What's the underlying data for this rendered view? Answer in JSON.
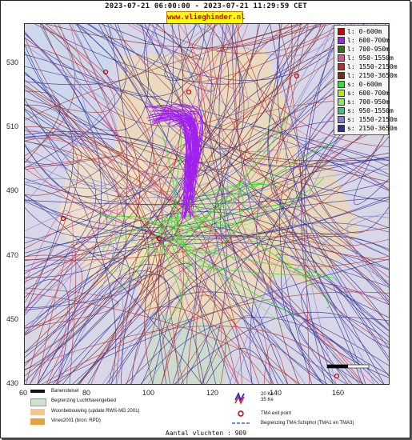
{
  "header": {
    "title": "2023-07-21 06:00:00 - 2023-07-21 11:29:59 CET",
    "brand": "www.vlieghinder.nl"
  },
  "axes": {
    "y_ticks": [
      "530",
      "510",
      "490",
      "470",
      "450",
      "430"
    ],
    "x_ticks": [
      "60",
      "80",
      "100",
      "120",
      "140",
      "160"
    ],
    "x_range": [
      60,
      175
    ],
    "y_range": [
      430,
      545
    ]
  },
  "legend": {
    "items": [
      {
        "label": "l: 0-600m",
        "color": "#d00000"
      },
      {
        "label": "l: 600-700m",
        "color": "#a020f0"
      },
      {
        "label": "l: 700-950m",
        "color": "#3c6e10"
      },
      {
        "label": "l: 950-1550m",
        "color": "#e05090"
      },
      {
        "label": "l: 1550-2150m",
        "color": "#b03030"
      },
      {
        "label": "l: 2150-3650m",
        "color": "#7a2a1a"
      },
      {
        "label": "s: 0-600m",
        "color": "#30e030"
      },
      {
        "label": "s: 600-700m",
        "color": "#b0f000"
      },
      {
        "label": "s: 700-950m",
        "color": "#90e860"
      },
      {
        "label": "s: 950-1550m",
        "color": "#40c080"
      },
      {
        "label": "s: 1550-2150m",
        "color": "#8080d0"
      },
      {
        "label": "s: 2150-3650m",
        "color": "#303090"
      }
    ]
  },
  "bottom_legend": {
    "runway": "Banenstelsel",
    "airport_boundary": "Begrenzing Luchthavengebied",
    "housing": "Woonbebouwing (update RWS-MD 2001)",
    "vinex": "Vinex2001 (bron: RPD)",
    "contours_1": "20 Ke",
    "contours_2": "35 Ke",
    "tma_exit": "TMA exit point",
    "tma_boundary": "Begrenzing TMA Schiphol  (TMA1 en TMA3)"
  },
  "footer": {
    "count": "Aantal vluchten : 909"
  },
  "colors": {
    "map_bg": "#d8d7e8",
    "land": "#f2dcb0",
    "water": "#c8d8f0",
    "track_blue": "#303090",
    "track_red": "#b03030",
    "track_purple": "#a020f0",
    "track_green": "#30e030"
  }
}
